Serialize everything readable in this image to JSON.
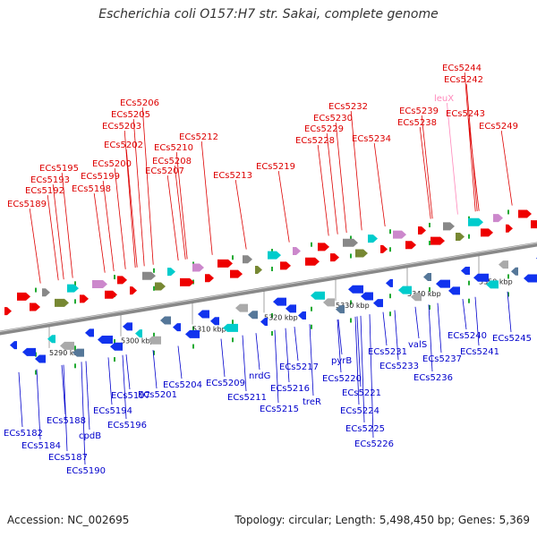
{
  "title": "Escherichia coli O157:H7 str. Sakai, complete genome",
  "footer": {
    "accession": "Accession: NC_002695",
    "summary": "Topology: circular; Length: 5,498,450 bp; Genes: 5,369"
  },
  "colors": {
    "forward_label": "#dd0000",
    "reverse_label": "#0000cc",
    "rna_label": "#ff88bb",
    "backbone": "#888888"
  },
  "ticks": [
    "5290 kbp",
    "5300 kbp",
    "5310 kbp",
    "5320 kbp",
    "5330 kbp",
    "5340 kbp",
    "5350 kbp"
  ],
  "forward_genes": [
    "ECs5189",
    "ECs5192",
    "ECs5193",
    "ECs5195",
    "ECs5198",
    "ECs5199",
    "ECs5200",
    "ECs5202",
    "ECs5203",
    "ECs5205",
    "ECs5206",
    "ECs5207",
    "ECs5208",
    "ECs5210",
    "ECs5212",
    "ECs5213",
    "ECs5219",
    "ECs5228",
    "ECs5229",
    "ECs5230",
    "ECs5232",
    "ECs5234",
    "ECs5238",
    "ECs5239",
    "leuX",
    "ECs5242",
    "ECs5243",
    "ECs5244",
    "ECs5249"
  ],
  "reverse_genes": [
    "ECs5182",
    "ECs5184",
    "ECs5187",
    "ECs5188",
    "ECs5190",
    "cpdB",
    "ECs5194",
    "ECs5196",
    "ECs5197",
    "ECs5201",
    "ECs5204",
    "ECs5209",
    "ECs5211",
    "nrdG",
    "ECs5215",
    "ECs5216",
    "ECs5217",
    "treR",
    "ECs5220",
    "pyrB",
    "ECs5221",
    "ECs5224",
    "ECs5225",
    "ECs5226",
    "ECs5231",
    "ECs5233",
    "valS",
    "ECs5236",
    "ECs5237",
    "ECs5240",
    "ECs5241",
    "ECs5245"
  ]
}
